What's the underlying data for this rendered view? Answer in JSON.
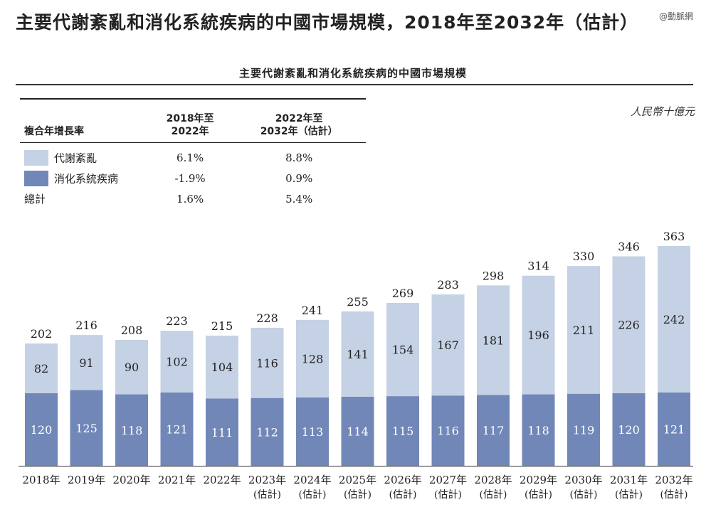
{
  "page_title": "主要代謝紊亂和消化系統疾病的中國市場規模，2018年至2032年（估計）",
  "watermark": "@動脈網",
  "colors": {
    "metabolic": "#c5d1e4",
    "digestive": "#7187b8"
  },
  "cagr_table": {
    "header": {
      "label": "複合年增長率",
      "period1_line1": "2018年至",
      "period1_line2": "2022年",
      "period2_line1": "2022年至",
      "period2_line2": "2032年（估計）"
    },
    "rows": [
      {
        "name": "代謝紊亂",
        "p1": "6.1%",
        "p2": "8.8%"
      },
      {
        "name": "消化系統疾病",
        "p1": "-1.9%",
        "p2": "0.9%"
      },
      {
        "name": "總計",
        "p1": "1.6%",
        "p2": "5.4%"
      }
    ]
  },
  "chart_data": {
    "type": "bar",
    "stacked": true,
    "title": "主要代謝紊亂和消化系統疾病的中國市場規模",
    "unit": "人民幣十億元",
    "categories": [
      "2018年",
      "2019年",
      "2020年",
      "2021年",
      "2022年",
      "2023年",
      "2024年",
      "2025年",
      "2026年",
      "2027年",
      "2028年",
      "2029年",
      "2030年",
      "2031年",
      "2032年"
    ],
    "category_sublabels": [
      "",
      "",
      "",
      "",
      "",
      "(估計)",
      "(估計)",
      "(估計)",
      "(估計)",
      "(估計)",
      "(估計)",
      "(估計)",
      "(估計)",
      "(估計)",
      "(估計)"
    ],
    "series": [
      {
        "name": "消化系統疾病",
        "values": [
          120,
          125,
          118,
          121,
          111,
          112,
          113,
          114,
          115,
          116,
          117,
          118,
          119,
          120,
          121
        ]
      },
      {
        "name": "代謝紊亂",
        "values": [
          82,
          91,
          90,
          102,
          104,
          116,
          128,
          141,
          154,
          167,
          181,
          196,
          211,
          226,
          242
        ]
      }
    ],
    "totals": [
      202,
      216,
      208,
      223,
      215,
      228,
      241,
      255,
      269,
      283,
      298,
      314,
      330,
      346,
      363
    ],
    "ylim": [
      0,
      363
    ],
    "grid": false
  }
}
